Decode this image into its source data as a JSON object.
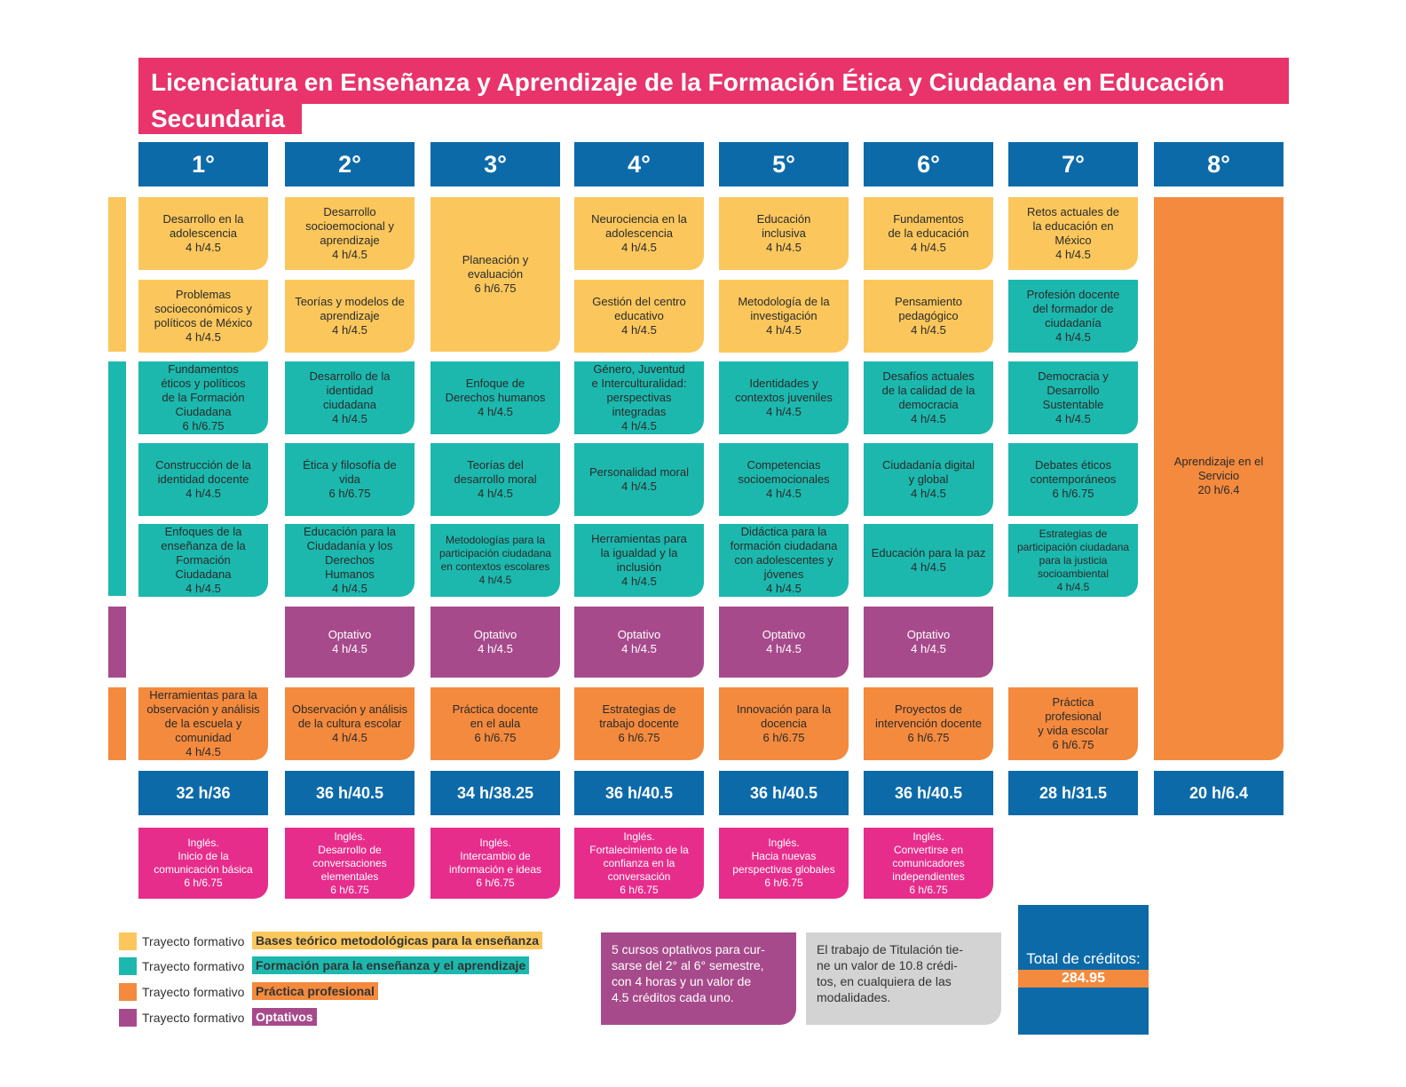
{
  "title": "Licenciatura en Enseñanza y Aprendizaje de la Formación Ética y Ciudadana en Educación Secundaria",
  "title_line1": "Licenciatura en Enseñanza y Aprendizaje de la Formación Ética y Ciudadana en Educación",
  "title_line2": "Secundaria",
  "semesters": [
    "1°",
    "2°",
    "3°",
    "4°",
    "5°",
    "6°",
    "7°",
    "8°"
  ],
  "courses": {
    "r1": [
      "Desarrollo en la\nadolescencia\n4 h/4.5",
      "Desarrollo\nsocioemocional y\naprendizaje\n4 h/4.5",
      "Planeación y\nevaluación\n6 h/6.75",
      "Neurociencia en la\nadolescencia\n4 h/4.5",
      "Educación\ninclusiva\n4 h/4.5",
      "Fundamentos\nde la educación\n4 h/4.5",
      "Retos actuales de\nla educación en\nMéxico\n4 h/4.5"
    ],
    "r2": [
      "Problemas\nsocioeconómicos y\npolíticos de México\n4 h/4.5",
      "Teorías y modelos de\naprendizaje\n4 h/4.5",
      "Gestión del centro\neducativo\n4 h/4.5",
      "Metodología de la\ninvestigación\n4 h/4.5",
      "Pensamiento\npedagógico\n4 h/4.5",
      "Profesión docente\ndel formador de\nciudadanía\n4 h/4.5"
    ],
    "r3": [
      "Fundamentos\néticos y políticos\nde la Formación\nCiudadana\n6 h/6.75",
      "Desarrollo de la\nidentidad\nciudadana\n4 h/4.5",
      "Enfoque de\nDerechos humanos\n4 h/4.5",
      "Género, Juventud\ne Interculturalidad:\nperspectivas\nintegradas\n4 h/4.5",
      "Identidades y\ncontextos juveniles\n4 h/4.5",
      "Desafíos actuales\nde la calidad de la\ndemocracia\n4 h/4.5",
      "Democracia y\nDesarrollo\nSustentable\n4 h/4.5"
    ],
    "r4": [
      "Construcción de la\nidentidad docente\n4 h/4.5",
      "Ética y filosofía de\nvida\n6 h/6.75",
      "Teorías del\ndesarrollo moral\n4 h/4.5",
      "Personalidad moral\n4 h/4.5",
      "Competencias\nsocioemocionales\n4 h/4.5",
      "Ciudadanía digital\ny global\n4 h/4.5",
      "Debates éticos\ncontemporáneos\n6 h/6.75"
    ],
    "r5": [
      "Enfoques de la\nenseñanza de la\nFormación\nCiudadana\n4 h/4.5",
      "Educación para la\nCiudadanía y los\nDerechos\nHumanos\n4 h/4.5",
      "Metodologías para la\nparticipación ciudadana\nen contextos escolares\n4 h/4.5",
      "Herramientas para\nla igualdad y la\ninclusión\n4 h/4.5",
      "Didáctica para la\nformación ciudadana\ncon adolescentes y\njóvenes\n4 h/4.5",
      "Educación para la paz\n4 h/4.5",
      "Estrategias de\nparticipación ciudadana\npara la justicia\nsocioambiental\n4 h/4.5"
    ],
    "r6": [
      "Optativo\n4 h/4.5",
      "Optativo\n4 h/4.5",
      "Optativo\n4 h/4.5",
      "Optativo\n4 h/4.5",
      "Optativo\n4 h/4.5"
    ],
    "r7": [
      "Herramientas para la\nobservación y análisis\nde la escuela y\ncomunidad\n4 h/4.5",
      "Observación y análisis\nde la cultura escolar\n4 h/4.5",
      "Práctica docente\nen el aula\n6 h/6.75",
      "Estrategias de\ntrabajo docente\n6 h/6.75",
      "Innovación para la\ndocencia\n6 h/6.75",
      "Proyectos de\nintervención docente\n6 h/6.75",
      "Práctica\nprofesional\ny vida escolar\n6 h/6.75"
    ],
    "service": "Aprendizaje en el\nServicio\n20 h/6.4"
  },
  "totals": [
    "32 h/36",
    "36 h/40.5",
    "34 h/38.25",
    "36 h/40.5",
    "36 h/40.5",
    "36 h/40.5",
    "28 h/31.5",
    "20 h/6.4"
  ],
  "english": [
    "Inglés.\nInicio de la\ncomunicación básica\n6 h/6.75",
    "Inglés.\nDesarrollo de\nconversaciones\nelementales\n6 h/6.75",
    "Inglés.\nIntercambio de\ninformación e ideas\n6 h/6.75",
    "Inglés.\nFortalecimiento de la\nconfianza en la\nconversación\n6 h/6.75",
    "Inglés.\nHacia nuevas\nperspectivas globales\n6 h/6.75",
    "Inglés.\nConvertirse en\ncomunicadores\nindependientes\n6 h/6.75"
  ],
  "legend": {
    "prefix": "Trayecto formativo",
    "items": [
      {
        "label": "Bases teórico metodológicas para la enseñanza",
        "color": "#fbc75c"
      },
      {
        "label": "Formación para la enseñanza y el aprendizaje",
        "color": "#1cb8ae"
      },
      {
        "label": "Práctica profesional",
        "color": "#f48a3e"
      },
      {
        "label": "Optativos",
        "color": "#a74a8b"
      }
    ]
  },
  "notes": {
    "optativos": "5 cursos optativos para cur-\nsarse del 2° al 6° semestre,\ncon 4 horas y un valor de\n4.5 créditos cada uno.",
    "titulacion": "El trabajo de Titulación tie-\nne un valor de 10.8 crédi-\ntos, en cualquiera de las\nmodalidades."
  },
  "total_credits": {
    "label": "Total de créditos:",
    "value": "284.95"
  },
  "colors": {
    "title": "#e8336b",
    "header": "#0d6aa9",
    "yellow": "#fbc75c",
    "teal": "#1cb8ae",
    "purple": "#a74a8b",
    "orange": "#f48a3e",
    "magenta": "#e62d8c",
    "gray": "#d3d3d4"
  }
}
